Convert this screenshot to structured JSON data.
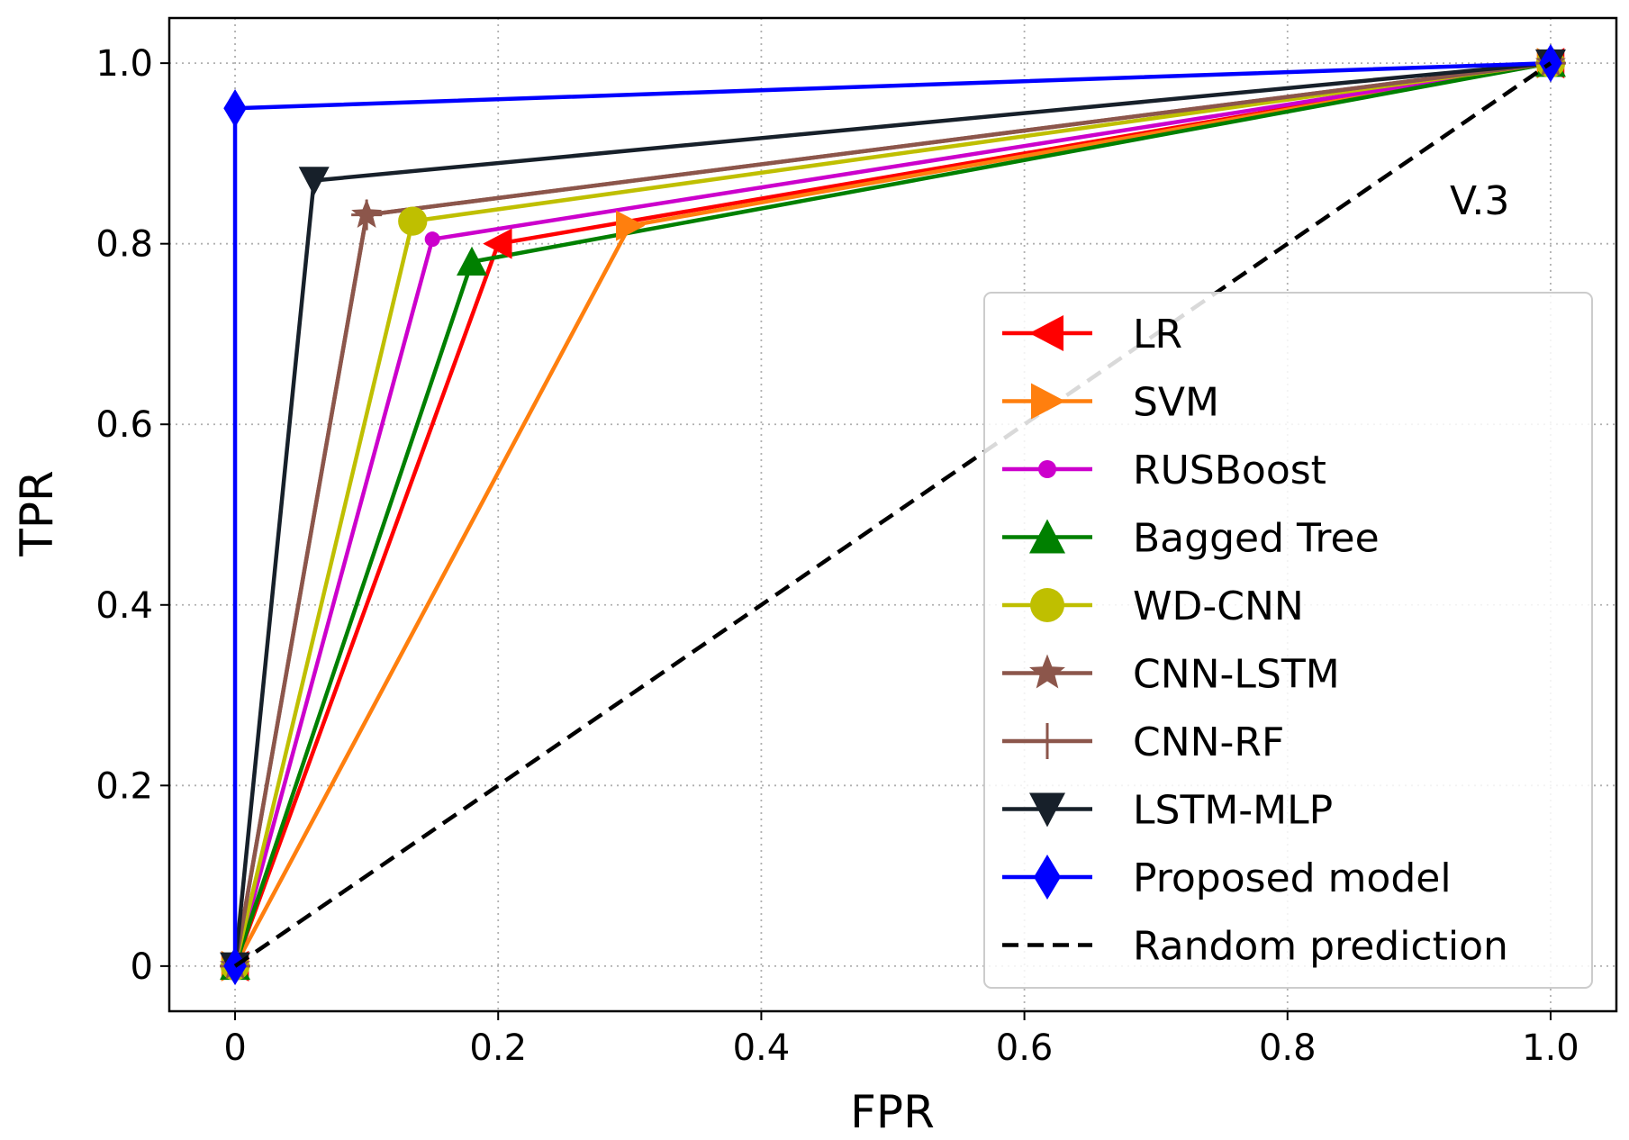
{
  "chart_data": {
    "type": "line",
    "title": "",
    "xlabel": "FPR",
    "ylabel": "TPR",
    "xlim": [
      -0.05,
      1.05
    ],
    "ylim": [
      -0.05,
      1.05
    ],
    "grid": true,
    "legend_position": "lower-right",
    "annotation": "V.3",
    "x_ticks": [
      0,
      0.2,
      0.4,
      0.6,
      0.8,
      1.0
    ],
    "x_tick_labels": [
      "0",
      "0.2",
      "0.4",
      "0.6",
      "0.8",
      "1.0"
    ],
    "y_ticks": [
      0,
      0.2,
      0.4,
      0.6,
      0.8,
      1.0
    ],
    "y_tick_labels": [
      "0",
      "0.2",
      "0.4",
      "0.6",
      "0.8",
      "1.0"
    ],
    "series": [
      {
        "name": "LR",
        "color": "#ff0000",
        "marker": "triangle-left",
        "dash": "solid",
        "x": [
          0,
          0.2,
          1
        ],
        "y": [
          0,
          0.8,
          1
        ]
      },
      {
        "name": "SVM",
        "color": "#ff7f0e",
        "marker": "triangle-right",
        "dash": "solid",
        "x": [
          0,
          0.3,
          1
        ],
        "y": [
          0,
          0.82,
          1
        ]
      },
      {
        "name": "RUSBoost",
        "color": "#cc00cc",
        "marker": "dot",
        "dash": "solid",
        "x": [
          0,
          0.15,
          1
        ],
        "y": [
          0,
          0.805,
          1
        ]
      },
      {
        "name": "Bagged Tree",
        "color": "#008000",
        "marker": "triangle-up",
        "dash": "solid",
        "x": [
          0,
          0.18,
          1
        ],
        "y": [
          0,
          0.78,
          1
        ]
      },
      {
        "name": "WD-CNN",
        "color": "#bfbf00",
        "marker": "circle",
        "dash": "solid",
        "x": [
          0,
          0.135,
          1
        ],
        "y": [
          0,
          0.825,
          1
        ]
      },
      {
        "name": "CNN-LSTM",
        "color": "#8c564b",
        "marker": "star",
        "dash": "solid",
        "x": [
          0,
          0.1,
          1
        ],
        "y": [
          0,
          0.832,
          1
        ]
      },
      {
        "name": "CNN-RF",
        "color": "#8c564b",
        "marker": "plus",
        "dash": "solid",
        "x": [
          0,
          0.1,
          1
        ],
        "y": [
          0,
          0.832,
          1
        ]
      },
      {
        "name": "LSTM-MLP",
        "color": "#17202a",
        "marker": "triangle-down",
        "dash": "solid",
        "x": [
          0,
          0.06,
          1
        ],
        "y": [
          0,
          0.87,
          1
        ]
      },
      {
        "name": "Proposed model",
        "color": "#0000ff",
        "marker": "diamond",
        "dash": "solid",
        "x": [
          0,
          0,
          1
        ],
        "y": [
          0,
          0.95,
          1
        ]
      },
      {
        "name": "Random prediction",
        "color": "#000000",
        "marker": "none",
        "dash": "dashed",
        "x": [
          0,
          1
        ],
        "y": [
          0,
          1
        ]
      }
    ]
  }
}
